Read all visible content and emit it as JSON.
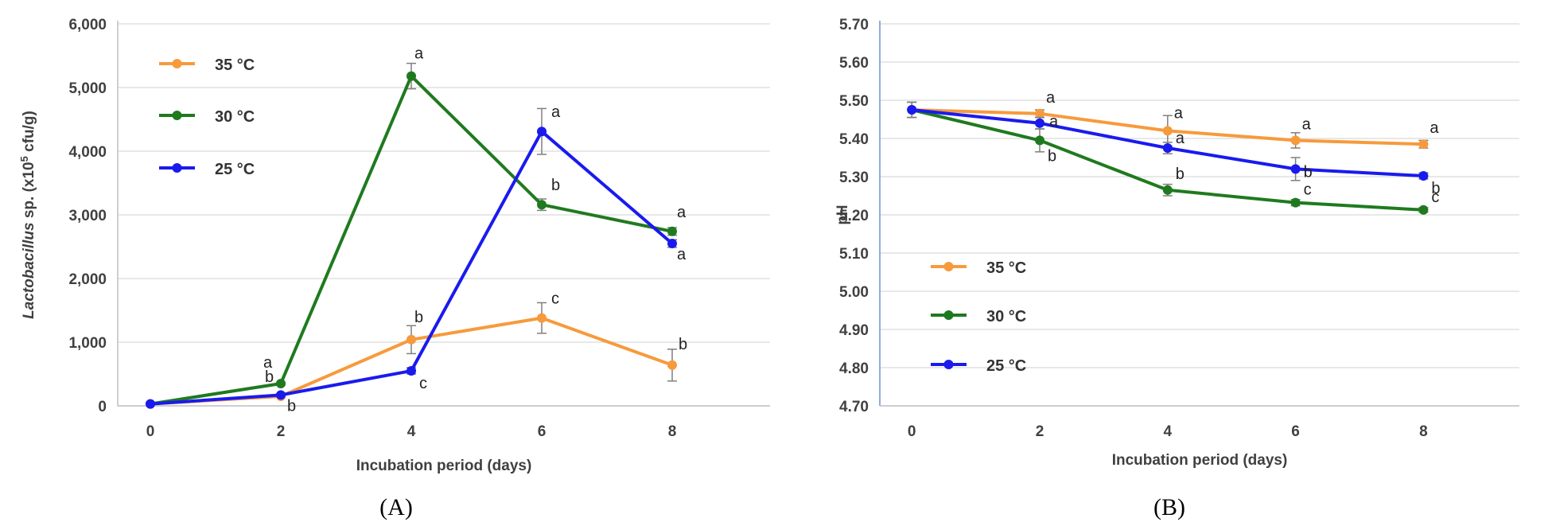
{
  "chart_data": [
    {
      "type": "line",
      "panel_label": "(A)",
      "xlabel": "Incubation period (days)",
      "ylabel_parts": [
        "Lactobacillus",
        " sp. (x10",
        "5",
        " cfu/g)"
      ],
      "x": [
        0,
        2,
        4,
        6,
        8
      ],
      "x_ticks": [
        "0",
        "2",
        "4",
        "6",
        "8"
      ],
      "ylim": [
        0,
        6000
      ],
      "y_ticks": [
        "0",
        "1,000",
        "2,000",
        "3,000",
        "4,000",
        "5,000",
        "6,000"
      ],
      "grid": "horizontal",
      "legend": "top-left",
      "series": [
        {
          "name": "35 °C",
          "color": "#f79a3c",
          "values": [
            30,
            150,
            1040,
            1380,
            640
          ],
          "errors": [
            0,
            20,
            220,
            240,
            250
          ],
          "letters": [
            "",
            "b",
            "b",
            "c",
            "b"
          ]
        },
        {
          "name": "30 °C",
          "color": "#1f7a1f",
          "values": [
            30,
            350,
            5180,
            3160,
            2740
          ],
          "errors": [
            0,
            20,
            200,
            90,
            60
          ],
          "letters": [
            "",
            "a",
            "a",
            "b",
            "a"
          ]
        },
        {
          "name": "25 °C",
          "color": "#1a1aee",
          "values": [
            30,
            170,
            550,
            4310,
            2550
          ],
          "errors": [
            0,
            20,
            50,
            360,
            60
          ],
          "letters": [
            "",
            "b",
            "c",
            "a",
            "a"
          ]
        }
      ]
    },
    {
      "type": "line",
      "panel_label": "(B)",
      "xlabel": "Incubation period (days)",
      "ylabel": "pH",
      "x": [
        0,
        2,
        4,
        6,
        8
      ],
      "x_ticks": [
        "0",
        "2",
        "4",
        "6",
        "8"
      ],
      "ylim": [
        4.7,
        5.7
      ],
      "y_ticks": [
        "4.70",
        "4.80",
        "4.90",
        "5.00",
        "5.10",
        "5.20",
        "5.30",
        "5.40",
        "5.50",
        "5.60",
        "5.70"
      ],
      "grid": "horizontal",
      "legend": "left",
      "series": [
        {
          "name": "35 °C",
          "color": "#f79a3c",
          "values": [
            5.475,
            5.465,
            5.42,
            5.395,
            5.385
          ],
          "errors": [
            0.02,
            0.01,
            0.04,
            0.02,
            0.01
          ],
          "letters": [
            "",
            "a",
            "a",
            "a",
            "a"
          ]
        },
        {
          "name": "30 °C",
          "color": "#1f7a1f",
          "values": [
            5.475,
            5.395,
            5.265,
            5.232,
            5.213
          ],
          "errors": [
            0.02,
            0.03,
            0.015,
            0.008,
            0.006
          ],
          "letters": [
            "",
            "b",
            "b",
            "c",
            "c"
          ]
        },
        {
          "name": "25 °C",
          "color": "#1a1aee",
          "values": [
            5.475,
            5.44,
            5.375,
            5.32,
            5.302
          ],
          "errors": [
            0.02,
            0.015,
            0.015,
            0.03,
            0.008
          ],
          "letters": [
            "",
            "a",
            "a",
            "b",
            "b"
          ]
        }
      ]
    }
  ]
}
